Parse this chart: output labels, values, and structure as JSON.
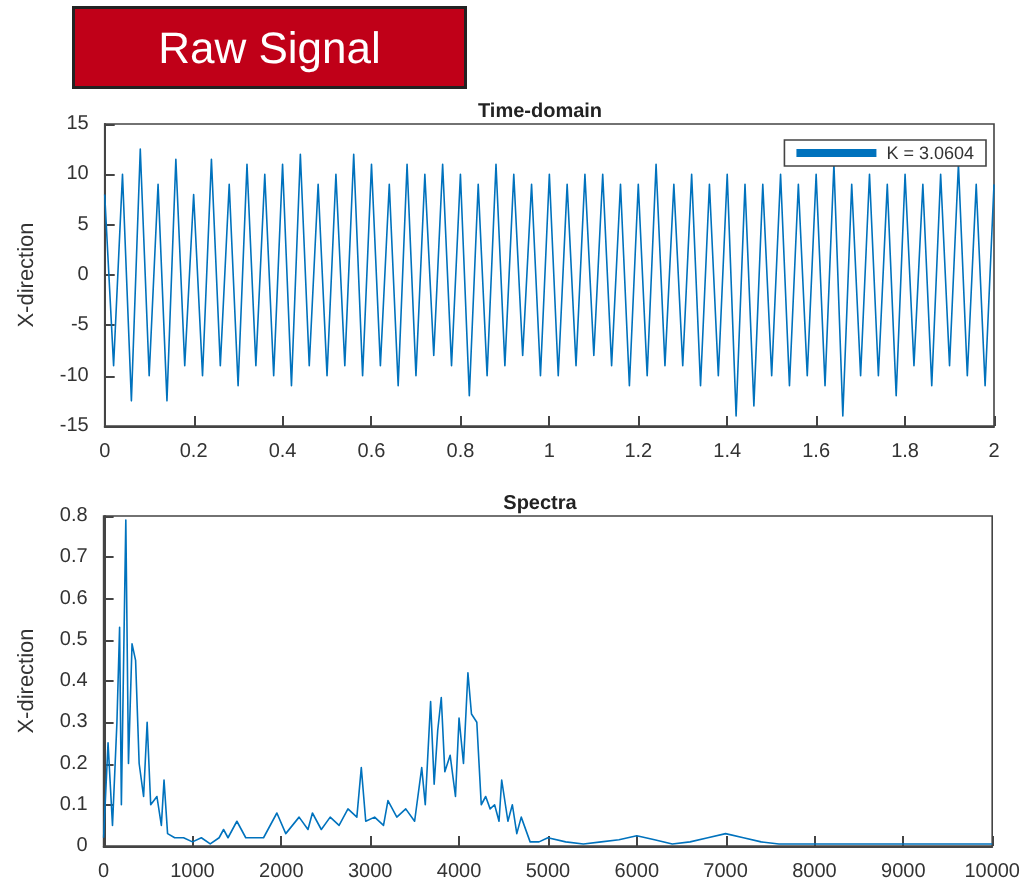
{
  "chart_data": [
    {
      "type": "line",
      "title": "Time-domain",
      "ylabel": "X-direction",
      "annotations": [
        "Raw Signal"
      ],
      "legend": "top right",
      "marker": "none",
      "line_style": "solid",
      "grid": false,
      "xlim": [
        0,
        2
      ],
      "xticks": [
        0,
        0.2,
        0.4,
        0.6,
        0.8,
        1,
        1.2,
        1.4,
        1.6,
        1.8,
        2
      ],
      "ylim": [
        -15,
        15
      ],
      "yticks": [
        -15,
        -10,
        -5,
        0,
        5,
        10,
        15
      ],
      "x": [
        0,
        0.02,
        0.04,
        0.06,
        0.08,
        0.1,
        0.12,
        0.14,
        0.16,
        0.18,
        0.2,
        0.22,
        0.24,
        0.26,
        0.28,
        0.3,
        0.32,
        0.34,
        0.36,
        0.38,
        0.4,
        0.42,
        0.44,
        0.46,
        0.48,
        0.5,
        0.52,
        0.54,
        0.56,
        0.58,
        0.6,
        0.62,
        0.64,
        0.66,
        0.68,
        0.7,
        0.72,
        0.74,
        0.76,
        0.78,
        0.8,
        0.82,
        0.84,
        0.86,
        0.88,
        0.9,
        0.92,
        0.94,
        0.96,
        0.98,
        1,
        1.02,
        1.04,
        1.06,
        1.08,
        1.1,
        1.12,
        1.14,
        1.16,
        1.18,
        1.2,
        1.22,
        1.24,
        1.26,
        1.28,
        1.3,
        1.32,
        1.34,
        1.36,
        1.38,
        1.4,
        1.42,
        1.44,
        1.46,
        1.48,
        1.5,
        1.52,
        1.54,
        1.56,
        1.58,
        1.6,
        1.62,
        1.64,
        1.66,
        1.68,
        1.7,
        1.72,
        1.74,
        1.76,
        1.78,
        1.8,
        1.82,
        1.84,
        1.86,
        1.88,
        1.9,
        1.92,
        1.94,
        1.96,
        1.98,
        2
      ],
      "series": [
        {
          "name": "K = 3.0604",
          "color": "#0072bd",
          "values": [
            8,
            -9,
            10,
            -12.5,
            12.5,
            -10,
            9,
            -12.5,
            11.5,
            -9,
            8,
            -10,
            11.5,
            -9,
            9,
            -11,
            11,
            -9,
            10,
            -10,
            11,
            -11,
            12,
            -9,
            9,
            -10,
            10,
            -9,
            12,
            -10,
            11,
            -9,
            9,
            -11,
            11,
            -10,
            10,
            -8,
            11,
            -9,
            10,
            -12,
            9,
            -10,
            11,
            -9,
            10,
            -8,
            9,
            -10,
            10,
            -10,
            9,
            -9,
            10,
            -8,
            10,
            -9,
            9,
            -11,
            9,
            -10,
            11,
            -9,
            9,
            -9,
            10,
            -11,
            9,
            -10,
            10,
            -14,
            9,
            -13,
            9,
            -10,
            10,
            -11,
            9,
            -10,
            10,
            -11,
            11,
            -14,
            9,
            -10,
            10,
            -10,
            9,
            -12,
            10,
            -9,
            9,
            -11,
            10,
            -9,
            11,
            -10,
            9,
            -11,
            9
          ]
        }
      ]
    },
    {
      "type": "line",
      "title": "Spectra",
      "ylabel": "X-direction",
      "marker": "none",
      "line_style": "solid",
      "grid": false,
      "xlim": [
        0,
        10000
      ],
      "xticks": [
        0,
        1000,
        2000,
        3000,
        4000,
        5000,
        6000,
        7000,
        8000,
        9000,
        10000
      ],
      "ylim": [
        0,
        0.8
      ],
      "yticks": [
        0,
        0.1,
        0.2,
        0.3,
        0.4,
        0.5,
        0.6,
        0.7,
        0.8
      ],
      "x": [
        0,
        50,
        100,
        150,
        180,
        200,
        250,
        280,
        320,
        360,
        400,
        450,
        490,
        530,
        600,
        650,
        680,
        720,
        800,
        900,
        1000,
        1100,
        1200,
        1300,
        1350,
        1400,
        1500,
        1600,
        1700,
        1800,
        1950,
        2050,
        2200,
        2300,
        2350,
        2450,
        2550,
        2650,
        2750,
        2850,
        2900,
        2950,
        3050,
        3150,
        3200,
        3300,
        3400,
        3500,
        3580,
        3620,
        3680,
        3720,
        3760,
        3800,
        3840,
        3900,
        3960,
        4000,
        4050,
        4100,
        4140,
        4200,
        4250,
        4300,
        4350,
        4400,
        4450,
        4480,
        4550,
        4600,
        4650,
        4700,
        4800,
        4900,
        5000,
        5200,
        5400,
        5600,
        5800,
        6000,
        6200,
        6400,
        6600,
        6800,
        7000,
        7200,
        7400,
        7600,
        8000,
        8500,
        9000,
        9500,
        10000
      ],
      "series": [
        {
          "color": "#0072bd",
          "values": [
            0.02,
            0.25,
            0.05,
            0.3,
            0.53,
            0.1,
            0.79,
            0.2,
            0.49,
            0.45,
            0.2,
            0.12,
            0.3,
            0.1,
            0.12,
            0.05,
            0.16,
            0.03,
            0.02,
            0.02,
            0.01,
            0.02,
            0.005,
            0.02,
            0.04,
            0.02,
            0.06,
            0.02,
            0.02,
            0.02,
            0.08,
            0.03,
            0.07,
            0.04,
            0.08,
            0.04,
            0.07,
            0.05,
            0.09,
            0.07,
            0.19,
            0.06,
            0.07,
            0.05,
            0.11,
            0.07,
            0.09,
            0.06,
            0.19,
            0.1,
            0.35,
            0.15,
            0.28,
            0.36,
            0.18,
            0.22,
            0.12,
            0.31,
            0.2,
            0.42,
            0.32,
            0.3,
            0.1,
            0.12,
            0.09,
            0.1,
            0.06,
            0.16,
            0.06,
            0.1,
            0.03,
            0.07,
            0.01,
            0.01,
            0.02,
            0.01,
            0.005,
            0.01,
            0.015,
            0.025,
            0.015,
            0.005,
            0.01,
            0.02,
            0.03,
            0.02,
            0.01,
            0.005,
            0.005,
            0.005,
            0.005,
            0.005,
            0.005
          ]
        }
      ]
    }
  ]
}
